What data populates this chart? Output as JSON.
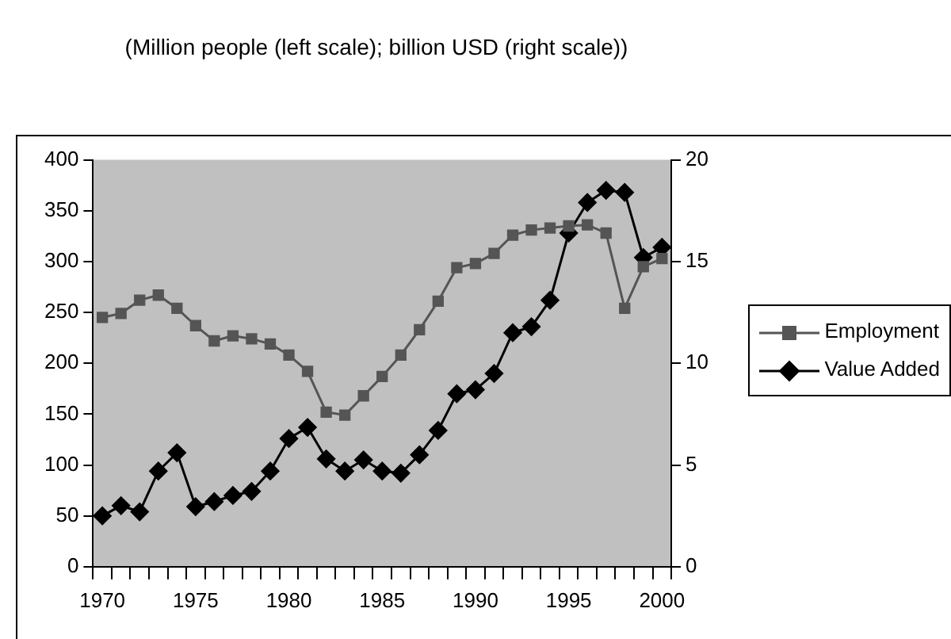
{
  "chart_data": {
    "type": "line",
    "title": "(Million people (left scale); billion USD (right scale))",
    "categories": [
      "1970",
      null,
      null,
      null,
      null,
      "1975",
      null,
      null,
      null,
      null,
      "1980",
      null,
      null,
      null,
      null,
      "1985",
      null,
      null,
      null,
      null,
      "1990",
      null,
      null,
      null,
      null,
      "1995",
      null,
      null,
      null,
      null,
      "2000"
    ],
    "series": [
      {
        "name": "Employment",
        "color": "#555555",
        "marker": "square",
        "values": [
          245,
          249,
          262,
          267,
          254,
          237,
          222,
          227,
          224,
          219,
          208,
          192,
          152,
          149,
          168,
          187,
          208,
          233,
          261,
          294,
          298,
          308,
          326,
          331,
          333,
          335,
          336,
          328,
          254,
          295,
          303
        ]
      },
      {
        "name": "Value Added",
        "color": "#000000",
        "marker": "diamond",
        "axis": "y2",
        "values": [
          2.5,
          3.0,
          2.7,
          4.7,
          5.6,
          2.95,
          3.2,
          3.5,
          3.7,
          4.7,
          6.3,
          6.85,
          5.3,
          4.7,
          5.25,
          4.7,
          4.6,
          5.5,
          6.7,
          8.5,
          8.7,
          9.5,
          11.5,
          11.8,
          13.1,
          16.4,
          17.9,
          18.5,
          18.4,
          15.2,
          15.7
        ]
      }
    ],
    "ylim": [
      0,
      400
    ],
    "yticks": [
      0,
      50,
      100,
      150,
      200,
      250,
      300,
      350,
      400
    ],
    "y2lim": [
      0,
      20
    ],
    "y2ticks": [
      0,
      5,
      10,
      15,
      20
    ],
    "grid": false,
    "legend": "right",
    "line_style": "solid"
  }
}
